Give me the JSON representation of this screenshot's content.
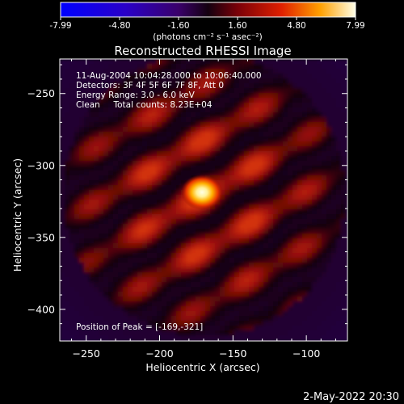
{
  "colorbar": {
    "ticks": [
      "-7.99",
      "-4.80",
      "-1.60",
      "1.60",
      "4.80",
      "7.99"
    ],
    "units": "(photons cm⁻² s⁻¹ asec⁻²)"
  },
  "plot": {
    "title": "Reconstructed RHESSI Image",
    "info_lines": [
      "11-Aug-2004 10:04:28.000 to 10:06:40.000",
      "Detectors: 3F 4F 5F 6F 7F 8F, Att 0",
      "Energy Range: 3.0 - 6.0 keV",
      "Clean     Total counts: 8.23E+04"
    ],
    "peak_label": "Position of Peak = [-169,-321]",
    "xlabel": "Heliocentric X (arcsec)",
    "ylabel": "Heliocentric Y (arcsec)",
    "x_range": [
      -268,
      -72
    ],
    "y_range": [
      -422,
      -226
    ],
    "x_ticks": [
      {
        "value": -250,
        "label": "−250"
      },
      {
        "value": -200,
        "label": "−200"
      },
      {
        "value": -150,
        "label": "−150"
      },
      {
        "value": -100,
        "label": "−100"
      }
    ],
    "y_ticks": [
      {
        "value": -250,
        "label": "−250"
      },
      {
        "value": -300,
        "label": "−300"
      },
      {
        "value": -350,
        "label": "−350"
      },
      {
        "value": -400,
        "label": "−400"
      }
    ],
    "peak_position": [
      -169,
      -321
    ]
  },
  "footer": {
    "date": "2-May-2022 20:30"
  }
}
